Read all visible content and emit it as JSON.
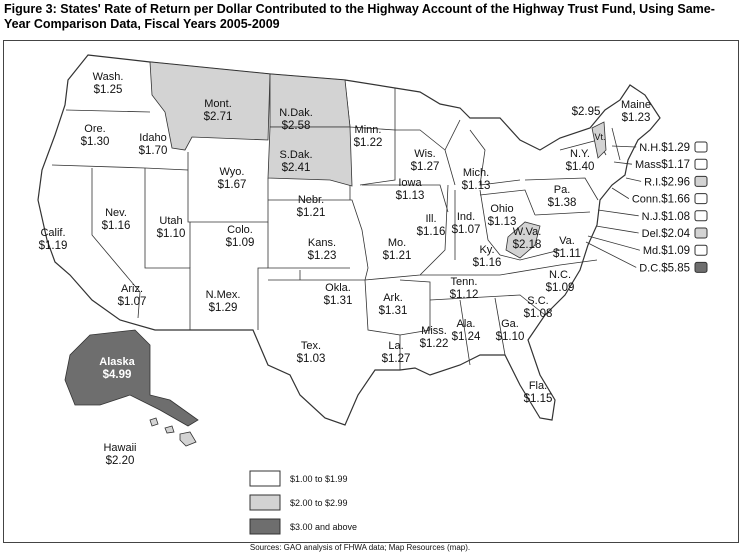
{
  "header": {
    "title": "Figure 3: States' Rate of Return per Dollar Contributed to the Highway Account of the Highway Trust Fund, Using Same-Year Comparison Data, Fiscal Years 2005-2009"
  },
  "map": {
    "states": [
      {
        "name": "Wash.",
        "value": "$1.25",
        "color": "#ffffff"
      },
      {
        "name": "Ore.",
        "value": "$1.30",
        "color": "#ffffff"
      },
      {
        "name": "Idaho",
        "value": "$1.70",
        "color": "#ffffff"
      },
      {
        "name": "Mont.",
        "value": "$2.71",
        "color": "#d3d3d3"
      },
      {
        "name": "N.Dak.",
        "value": "$2.58",
        "color": "#d3d3d3"
      },
      {
        "name": "S.Dak.",
        "value": "$2.41",
        "color": "#d3d3d3"
      },
      {
        "name": "Minn.",
        "value": "$1.22",
        "color": "#ffffff"
      },
      {
        "name": "Wis.",
        "value": "$1.27",
        "color": "#ffffff"
      },
      {
        "name": "Mich.",
        "value": "$1.13",
        "color": "#ffffff"
      },
      {
        "name": "Wyo.",
        "value": "$1.67",
        "color": "#ffffff"
      },
      {
        "name": "Nev.",
        "value": "$1.16",
        "color": "#ffffff"
      },
      {
        "name": "Calif.",
        "value": "$1.19",
        "color": "#ffffff"
      },
      {
        "name": "Utah",
        "value": "$1.10",
        "color": "#ffffff"
      },
      {
        "name": "Colo.",
        "value": "$1.09",
        "color": "#ffffff"
      },
      {
        "name": "Nebr.",
        "value": "$1.21",
        "color": "#ffffff"
      },
      {
        "name": "Iowa",
        "value": "$1.13",
        "color": "#ffffff"
      },
      {
        "name": "Ill.",
        "value": "$1.16",
        "color": "#ffffff"
      },
      {
        "name": "Ind.",
        "value": "$1.07",
        "color": "#ffffff"
      },
      {
        "name": "Ohio",
        "value": "$1.13",
        "color": "#ffffff"
      },
      {
        "name": "Pa.",
        "value": "$1.38",
        "color": "#ffffff"
      },
      {
        "name": "N.Y.",
        "value": "$1.40",
        "color": "#ffffff"
      },
      {
        "name": "Maine",
        "value": "$1.23",
        "color": "#ffffff"
      },
      {
        "name": "Vt.",
        "value": "$2.95",
        "color": "#d3d3d3"
      },
      {
        "name": "Kans.",
        "value": "$1.23",
        "color": "#ffffff"
      },
      {
        "name": "Mo.",
        "value": "$1.21",
        "color": "#ffffff"
      },
      {
        "name": "Ky.",
        "value": "$1.16",
        "color": "#ffffff"
      },
      {
        "name": "W.Va.",
        "value": "$2.18",
        "color": "#d3d3d3"
      },
      {
        "name": "Va.",
        "value": "$1.11",
        "color": "#ffffff"
      },
      {
        "name": "Ariz.",
        "value": "$1.07",
        "color": "#ffffff"
      },
      {
        "name": "N.Mex.",
        "value": "$1.29",
        "color": "#ffffff"
      },
      {
        "name": "Okla.",
        "value": "$1.31",
        "color": "#ffffff"
      },
      {
        "name": "Ark.",
        "value": "$1.31",
        "color": "#ffffff"
      },
      {
        "name": "Tenn.",
        "value": "$1.12",
        "color": "#ffffff"
      },
      {
        "name": "N.C.",
        "value": "$1.09",
        "color": "#ffffff"
      },
      {
        "name": "S.C.",
        "value": "$1.08",
        "color": "#ffffff"
      },
      {
        "name": "Ga.",
        "value": "$1.10",
        "color": "#ffffff"
      },
      {
        "name": "Ala.",
        "value": "$1.24",
        "color": "#ffffff"
      },
      {
        "name": "Miss.",
        "value": "$1.22",
        "color": "#ffffff"
      },
      {
        "name": "La.",
        "value": "$1.27",
        "color": "#ffffff"
      },
      {
        "name": "Tex.",
        "value": "$1.03",
        "color": "#ffffff"
      },
      {
        "name": "Fla.",
        "value": "$1.15",
        "color": "#ffffff"
      },
      {
        "name": "Alaska",
        "value": "$4.99",
        "color": "#6e6e6e"
      },
      {
        "name": "Hawaii",
        "value": "$2.20",
        "color": "#d3d3d3"
      }
    ],
    "callouts": [
      {
        "name": "N.H.",
        "value": "$1.29",
        "color": "#ffffff"
      },
      {
        "name": "Mass",
        "value": "$1.17",
        "color": "#ffffff"
      },
      {
        "name": "R.I.",
        "value": "$2.96",
        "color": "#d3d3d3"
      },
      {
        "name": "Conn.",
        "value": "$1.66",
        "color": "#ffffff"
      },
      {
        "name": "N.J.",
        "value": "$1.08",
        "color": "#ffffff"
      },
      {
        "name": "Del.",
        "value": "$2.04",
        "color": "#d3d3d3"
      },
      {
        "name": "Md.",
        "value": "$1.09",
        "color": "#ffffff"
      },
      {
        "name": "D.C.",
        "value": "$5.85",
        "color": "#6e6e6e"
      }
    ],
    "legend": [
      {
        "label": "$1.00 to $1.99",
        "color": "#ffffff"
      },
      {
        "label": "$2.00 to $2.99",
        "color": "#d3d3d3"
      },
      {
        "label": "$3.00 and above",
        "color": "#6e6e6e"
      }
    ],
    "source": "Sources: GAO analysis of FHWA data; Map Resources (map)."
  }
}
